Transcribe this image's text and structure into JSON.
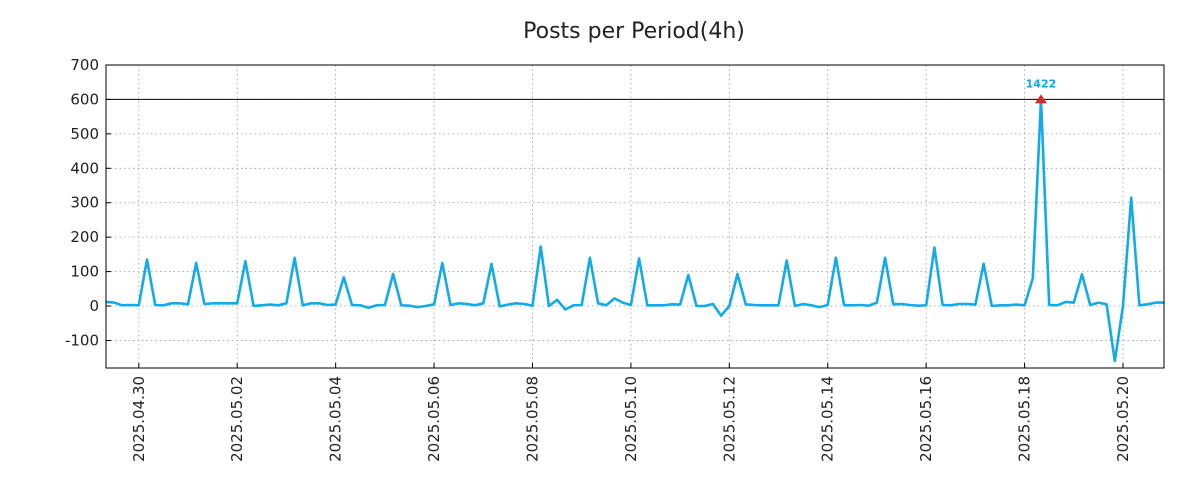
{
  "chart_data": {
    "type": "line",
    "title": "Posts per Period(4h)",
    "xlabel": "",
    "ylabel": "",
    "ylim": [
      -180,
      700
    ],
    "y_ticks": [
      700,
      600,
      500,
      400,
      300,
      200,
      100,
      0,
      -100
    ],
    "xlim": [
      "2025-04-29 08:00",
      "2025-05-20 20:00"
    ],
    "x_ticks": [
      {
        "date": "2025-04-30 00:00",
        "label": "2025.04.30"
      },
      {
        "date": "2025-05-02 00:00",
        "label": "2025.05.02"
      },
      {
        "date": "2025-05-04 00:00",
        "label": "2025.05.04"
      },
      {
        "date": "2025-05-06 00:00",
        "label": "2025.05.06"
      },
      {
        "date": "2025-05-08 00:00",
        "label": "2025.05.08"
      },
      {
        "date": "2025-05-10 00:00",
        "label": "2025.05.10"
      },
      {
        "date": "2025-05-12 00:00",
        "label": "2025.05.12"
      },
      {
        "date": "2025-05-14 00:00",
        "label": "2025.05.14"
      },
      {
        "date": "2025-05-16 00:00",
        "label": "2025.05.16"
      },
      {
        "date": "2025-05-18 00:00",
        "label": "2025.05.18"
      },
      {
        "date": "2025-05-20 00:00",
        "label": "2025.05.20"
      }
    ],
    "grid": true,
    "reference_line": 600,
    "series": [
      {
        "color": "#12abe8",
        "points": [
          [
            "2025-04-29 08:00",
            12
          ],
          [
            "2025-04-29 12:00",
            10
          ],
          [
            "2025-04-29 16:00",
            2
          ],
          [
            "2025-04-29 20:00",
            3
          ],
          [
            "2025-04-30 00:00",
            2
          ],
          [
            "2025-04-30 04:00",
            135
          ],
          [
            "2025-04-30 08:00",
            3
          ],
          [
            "2025-04-30 12:00",
            2
          ],
          [
            "2025-04-30 16:00",
            8
          ],
          [
            "2025-04-30 20:00",
            8
          ],
          [
            "2025-05-01 00:00",
            5
          ],
          [
            "2025-05-01 04:00",
            125
          ],
          [
            "2025-05-01 08:00",
            6
          ],
          [
            "2025-05-01 12:00",
            8
          ],
          [
            "2025-05-01 16:00",
            8
          ],
          [
            "2025-05-01 20:00",
            8
          ],
          [
            "2025-05-02 00:00",
            8
          ],
          [
            "2025-05-02 04:00",
            130
          ],
          [
            "2025-05-02 08:00",
            0
          ],
          [
            "2025-05-02 12:00",
            2
          ],
          [
            "2025-05-02 16:00",
            4
          ],
          [
            "2025-05-02 20:00",
            2
          ],
          [
            "2025-05-03 00:00",
            8
          ],
          [
            "2025-05-03 04:00",
            140
          ],
          [
            "2025-05-03 08:00",
            2
          ],
          [
            "2025-05-03 12:00",
            8
          ],
          [
            "2025-05-03 16:00",
            8
          ],
          [
            "2025-05-03 20:00",
            3
          ],
          [
            "2025-05-04 00:00",
            4
          ],
          [
            "2025-05-04 04:00",
            83
          ],
          [
            "2025-05-04 08:00",
            3
          ],
          [
            "2025-05-04 12:00",
            2
          ],
          [
            "2025-05-04 16:00",
            -5
          ],
          [
            "2025-05-04 20:00",
            2
          ],
          [
            "2025-05-05 00:00",
            3
          ],
          [
            "2025-05-05 04:00",
            93
          ],
          [
            "2025-05-05 08:00",
            2
          ],
          [
            "2025-05-05 12:00",
            1
          ],
          [
            "2025-05-05 16:00",
            -3
          ],
          [
            "2025-05-05 20:00",
            0
          ],
          [
            "2025-05-06 00:00",
            5
          ],
          [
            "2025-05-06 04:00",
            125
          ],
          [
            "2025-05-06 08:00",
            3
          ],
          [
            "2025-05-06 12:00",
            8
          ],
          [
            "2025-05-06 16:00",
            6
          ],
          [
            "2025-05-06 20:00",
            2
          ],
          [
            "2025-05-07 00:00",
            8
          ],
          [
            "2025-05-07 04:00",
            122
          ],
          [
            "2025-05-07 08:00",
            -1
          ],
          [
            "2025-05-07 12:00",
            4
          ],
          [
            "2025-05-07 16:00",
            8
          ],
          [
            "2025-05-07 20:00",
            6
          ],
          [
            "2025-05-08 00:00",
            1
          ],
          [
            "2025-05-08 04:00",
            173
          ],
          [
            "2025-05-08 08:00",
            0
          ],
          [
            "2025-05-08 12:00",
            18
          ],
          [
            "2025-05-08 16:00",
            -10
          ],
          [
            "2025-05-08 20:00",
            2
          ],
          [
            "2025-05-09 00:00",
            3
          ],
          [
            "2025-05-09 04:00",
            140
          ],
          [
            "2025-05-09 08:00",
            8
          ],
          [
            "2025-05-09 12:00",
            2
          ],
          [
            "2025-05-09 16:00",
            22
          ],
          [
            "2025-05-09 20:00",
            10
          ],
          [
            "2025-05-10 00:00",
            3
          ],
          [
            "2025-05-10 04:00",
            138
          ],
          [
            "2025-05-10 08:00",
            2
          ],
          [
            "2025-05-10 12:00",
            2
          ],
          [
            "2025-05-10 16:00",
            2
          ],
          [
            "2025-05-10 20:00",
            5
          ],
          [
            "2025-05-11 00:00",
            4
          ],
          [
            "2025-05-11 04:00",
            90
          ],
          [
            "2025-05-11 08:00",
            0
          ],
          [
            "2025-05-11 12:00",
            0
          ],
          [
            "2025-05-11 16:00",
            6
          ],
          [
            "2025-05-11 20:00",
            -28
          ],
          [
            "2025-05-12 00:00",
            0
          ],
          [
            "2025-05-12 04:00",
            93
          ],
          [
            "2025-05-12 08:00",
            5
          ],
          [
            "2025-05-12 12:00",
            3
          ],
          [
            "2025-05-12 16:00",
            2
          ],
          [
            "2025-05-12 20:00",
            2
          ],
          [
            "2025-05-13 00:00",
            2
          ],
          [
            "2025-05-13 04:00",
            132
          ],
          [
            "2025-05-13 08:00",
            0
          ],
          [
            "2025-05-13 12:00",
            6
          ],
          [
            "2025-05-13 16:00",
            2
          ],
          [
            "2025-05-13 20:00",
            -3
          ],
          [
            "2025-05-14 00:00",
            3
          ],
          [
            "2025-05-14 04:00",
            140
          ],
          [
            "2025-05-14 08:00",
            2
          ],
          [
            "2025-05-14 12:00",
            2
          ],
          [
            "2025-05-14 16:00",
            3
          ],
          [
            "2025-05-14 20:00",
            1
          ],
          [
            "2025-05-15 00:00",
            10
          ],
          [
            "2025-05-15 04:00",
            140
          ],
          [
            "2025-05-15 08:00",
            5
          ],
          [
            "2025-05-15 12:00",
            6
          ],
          [
            "2025-05-15 16:00",
            3
          ],
          [
            "2025-05-15 20:00",
            1
          ],
          [
            "2025-05-16 00:00",
            2
          ],
          [
            "2025-05-16 04:00",
            170
          ],
          [
            "2025-05-16 08:00",
            3
          ],
          [
            "2025-05-16 12:00",
            2
          ],
          [
            "2025-05-16 16:00",
            6
          ],
          [
            "2025-05-16 20:00",
            6
          ],
          [
            "2025-05-17 00:00",
            4
          ],
          [
            "2025-05-17 04:00",
            123
          ],
          [
            "2025-05-17 08:00",
            0
          ],
          [
            "2025-05-17 12:00",
            2
          ],
          [
            "2025-05-17 16:00",
            2
          ],
          [
            "2025-05-17 20:00",
            4
          ],
          [
            "2025-05-18 00:00",
            2
          ],
          [
            "2025-05-18 04:00",
            80
          ],
          [
            "2025-05-18 08:00",
            600
          ],
          [
            "2025-05-18 12:00",
            3
          ],
          [
            "2025-05-18 16:00",
            2
          ],
          [
            "2025-05-18 20:00",
            12
          ],
          [
            "2025-05-19 00:00",
            10
          ],
          [
            "2025-05-19 04:00",
            92
          ],
          [
            "2025-05-19 08:00",
            3
          ],
          [
            "2025-05-19 12:00",
            10
          ],
          [
            "2025-05-19 16:00",
            5
          ],
          [
            "2025-05-19 20:00",
            -160
          ],
          [
            "2025-05-20 00:00",
            0
          ],
          [
            "2025-05-20 04:00",
            315
          ],
          [
            "2025-05-20 08:00",
            2
          ],
          [
            "2025-05-20 12:00",
            5
          ],
          [
            "2025-05-20 16:00",
            10
          ],
          [
            "2025-05-20 20:00",
            10
          ]
        ]
      }
    ],
    "annotation": {
      "text": "1422",
      "date": "2025-05-18 08:00",
      "y": 600,
      "color": "#0ea5e9",
      "marker_color": "#dc2626"
    }
  }
}
